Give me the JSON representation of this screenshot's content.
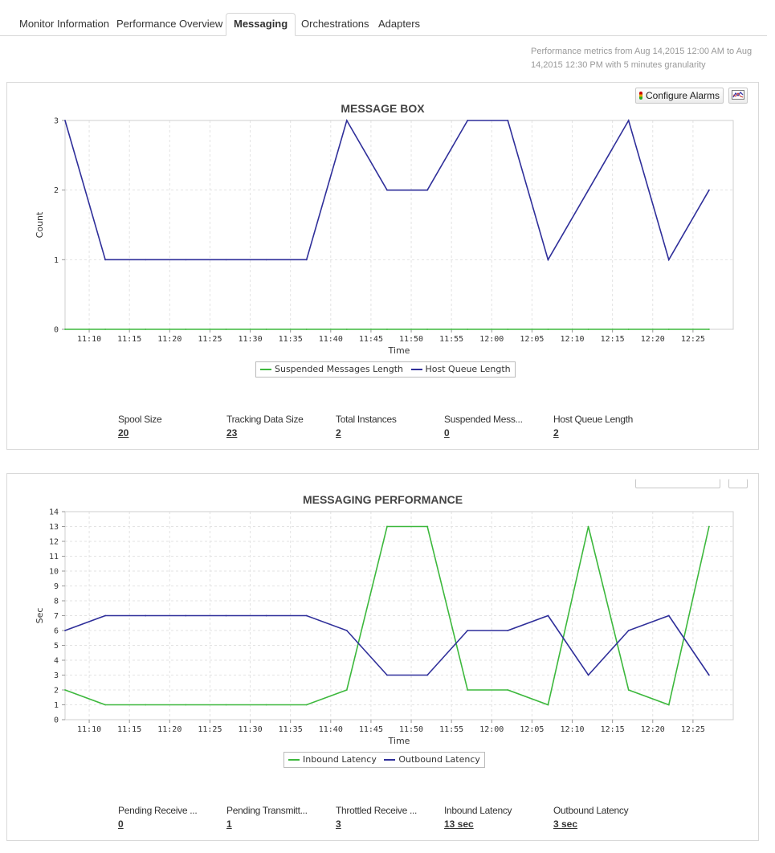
{
  "tabs": [
    {
      "label": "Monitor Information"
    },
    {
      "label": "Performance Overview"
    },
    {
      "label": "Messaging",
      "active": true
    },
    {
      "label": "Orchestrations"
    },
    {
      "label": "Adapters"
    }
  ],
  "range_text": "Performance metrics from Aug 14,2015 12:00 AM to Aug 14,2015 12:30 PM with 5 minutes granularity",
  "message_box": {
    "title": "MESSAGE BOX",
    "configure_alarms_label": "Configure Alarms",
    "stats": [
      {
        "label": "Spool Size",
        "value": "20"
      },
      {
        "label": "Tracking Data Size",
        "value": "23"
      },
      {
        "label": "Total Instances",
        "value": "2"
      },
      {
        "label": "Suspended Mess...",
        "value": "0"
      },
      {
        "label": "Host Queue Length",
        "value": "2"
      }
    ]
  },
  "messaging_performance": {
    "title": "MESSAGING PERFORMANCE",
    "stats": [
      {
        "label": "Pending Receive ...",
        "value": "0"
      },
      {
        "label": "Pending Transmitt...",
        "value": "1"
      },
      {
        "label": "Throttled Receive ...",
        "value": "3"
      },
      {
        "label": "Inbound Latency",
        "value": "13 sec"
      },
      {
        "label": "Outbound Latency",
        "value": "3 sec"
      }
    ]
  },
  "colors": {
    "green": "#3db83d",
    "blue": "#2f2f9a",
    "grid": "#e3e3e3"
  },
  "chart_data": [
    {
      "type": "line",
      "title": "MESSAGE BOX",
      "xlabel": "Time",
      "ylabel": "Count",
      "x_ticks": [
        "11:10",
        "11:15",
        "11:20",
        "11:25",
        "11:30",
        "11:35",
        "11:40",
        "11:45",
        "11:50",
        "11:55",
        "12:00",
        "12:05",
        "12:10",
        "12:15",
        "12:20",
        "12:25"
      ],
      "x_range": [
        "11:07",
        "12:30"
      ],
      "ylim": [
        0,
        3
      ],
      "y_ticks": [
        0,
        1,
        2,
        3
      ],
      "grid": true,
      "legend": "bottom-center",
      "series": [
        {
          "name": "Suspended Messages Length",
          "color": "#3db83d",
          "points": [
            [
              "11:07",
              0
            ],
            [
              "11:12",
              0
            ],
            [
              "11:17",
              0
            ],
            [
              "11:22",
              0
            ],
            [
              "11:27",
              0
            ],
            [
              "11:32",
              0
            ],
            [
              "11:37",
              0
            ],
            [
              "11:42",
              0
            ],
            [
              "11:47",
              0
            ],
            [
              "11:52",
              0
            ],
            [
              "11:57",
              0
            ],
            [
              "12:02",
              0
            ],
            [
              "12:07",
              0
            ],
            [
              "12:12",
              0
            ],
            [
              "12:17",
              0
            ],
            [
              "12:22",
              0
            ],
            [
              "12:27",
              0
            ]
          ]
        },
        {
          "name": "Host Queue Length",
          "color": "#2f2f9a",
          "points": [
            [
              "11:07",
              3
            ],
            [
              "11:12",
              1
            ],
            [
              "11:17",
              1
            ],
            [
              "11:22",
              1
            ],
            [
              "11:27",
              1
            ],
            [
              "11:32",
              1
            ],
            [
              "11:37",
              1
            ],
            [
              "11:42",
              3
            ],
            [
              "11:47",
              2
            ],
            [
              "11:52",
              2
            ],
            [
              "11:57",
              3
            ],
            [
              "12:02",
              3
            ],
            [
              "12:07",
              1
            ],
            [
              "12:12",
              2
            ],
            [
              "12:17",
              3
            ],
            [
              "12:22",
              1
            ],
            [
              "12:27",
              2
            ]
          ]
        }
      ]
    },
    {
      "type": "line",
      "title": "MESSAGING PERFORMANCE",
      "xlabel": "Time",
      "ylabel": "Sec",
      "x_ticks": [
        "11:10",
        "11:15",
        "11:20",
        "11:25",
        "11:30",
        "11:35",
        "11:40",
        "11:45",
        "11:50",
        "11:55",
        "12:00",
        "12:05",
        "12:10",
        "12:15",
        "12:20",
        "12:25"
      ],
      "x_range": [
        "11:07",
        "12:30"
      ],
      "ylim": [
        0,
        14
      ],
      "y_ticks": [
        0,
        1,
        2,
        3,
        4,
        5,
        6,
        7,
        8,
        9,
        10,
        11,
        12,
        13,
        14
      ],
      "grid": true,
      "legend": "bottom-center",
      "series": [
        {
          "name": "Inbound Latency",
          "color": "#3db83d",
          "points": [
            [
              "11:07",
              2
            ],
            [
              "11:12",
              1
            ],
            [
              "11:17",
              1
            ],
            [
              "11:22",
              1
            ],
            [
              "11:27",
              1
            ],
            [
              "11:32",
              1
            ],
            [
              "11:37",
              1
            ],
            [
              "11:42",
              2
            ],
            [
              "11:47",
              13
            ],
            [
              "11:52",
              13
            ],
            [
              "11:57",
              2
            ],
            [
              "12:02",
              2
            ],
            [
              "12:07",
              1
            ],
            [
              "12:12",
              13
            ],
            [
              "12:17",
              2
            ],
            [
              "12:22",
              1
            ],
            [
              "12:27",
              13
            ]
          ]
        },
        {
          "name": "Outbound Latency",
          "color": "#2f2f9a",
          "points": [
            [
              "11:07",
              6
            ],
            [
              "11:12",
              7
            ],
            [
              "11:17",
              7
            ],
            [
              "11:22",
              7
            ],
            [
              "11:27",
              7
            ],
            [
              "11:32",
              7
            ],
            [
              "11:37",
              7
            ],
            [
              "11:42",
              6
            ],
            [
              "11:47",
              3
            ],
            [
              "11:52",
              3
            ],
            [
              "11:57",
              6
            ],
            [
              "12:02",
              6
            ],
            [
              "12:07",
              7
            ],
            [
              "12:12",
              3
            ],
            [
              "12:17",
              6
            ],
            [
              "12:22",
              7
            ],
            [
              "12:27",
              3
            ]
          ]
        }
      ]
    }
  ]
}
